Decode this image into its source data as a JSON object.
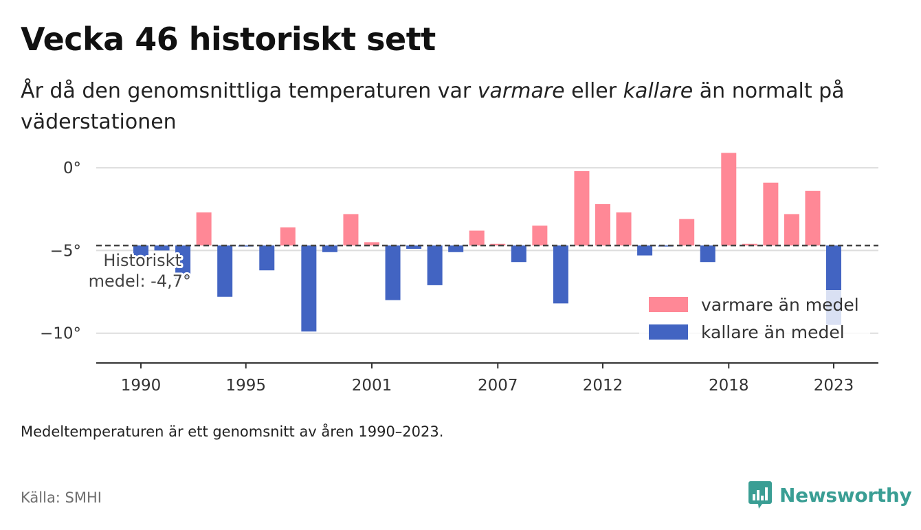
{
  "title": "Vecka 46 historiskt sett",
  "subtitle": {
    "part1": "År då den genomsnittliga temperaturen var ",
    "warm_word": "varmare",
    "part2": " eller ",
    "cold_word": "kallare",
    "part3": " än normalt på väderstationen"
  },
  "note": "Medeltemperaturen är ett genomsnitt av åren 1990–2023.",
  "source": "Källa: SMHI",
  "brand": {
    "name": "Newsworthy",
    "icon": "newsworthy-chart-bubble-icon"
  },
  "colors": {
    "warm": "#ff8896",
    "cold": "#4264c2",
    "mean_line": "#444444",
    "grid": "#dddddd"
  },
  "chart_data": {
    "type": "bar",
    "x": [
      1990,
      1991,
      1992,
      1993,
      1994,
      1995,
      1996,
      1997,
      1998,
      1999,
      2000,
      2001,
      2002,
      2003,
      2004,
      2005,
      2006,
      2007,
      2008,
      2009,
      2010,
      2011,
      2012,
      2013,
      2014,
      2015,
      2016,
      2017,
      2018,
      2019,
      2020,
      2021,
      2022,
      2023
    ],
    "values": [
      -5.4,
      -5.0,
      -6.7,
      -2.7,
      -7.8,
      -4.7,
      -6.2,
      -3.6,
      -9.9,
      -5.1,
      -2.8,
      -4.5,
      -8.0,
      -4.9,
      -7.1,
      -5.1,
      -3.8,
      -4.6,
      -5.7,
      -3.5,
      -8.2,
      -0.2,
      -2.2,
      -2.7,
      -5.3,
      -4.7,
      -3.1,
      -5.7,
      0.9,
      -4.6,
      -0.9,
      -2.8,
      -1.4,
      -9.5
    ],
    "mean": -4.7,
    "mean_label_line1": "Historiskt",
    "mean_label_line2": "medel: -4,7°",
    "ylim": [
      -11.8,
      1.0
    ],
    "y_ticks": [
      0,
      -5,
      -10
    ],
    "y_tick_labels": [
      "0°",
      "−5°",
      "−10°"
    ],
    "x_ticks": [
      1990,
      1995,
      2001,
      2007,
      2012,
      2018,
      2023
    ],
    "x_tick_labels": [
      "1990",
      "1995",
      "2001",
      "2007",
      "2012",
      "2018",
      "2023"
    ],
    "grid": true,
    "legend_position": "bottom-right",
    "legend": [
      {
        "key": "warm",
        "label": "varmare än medel"
      },
      {
        "key": "cold",
        "label": "kallare än medel"
      }
    ]
  }
}
